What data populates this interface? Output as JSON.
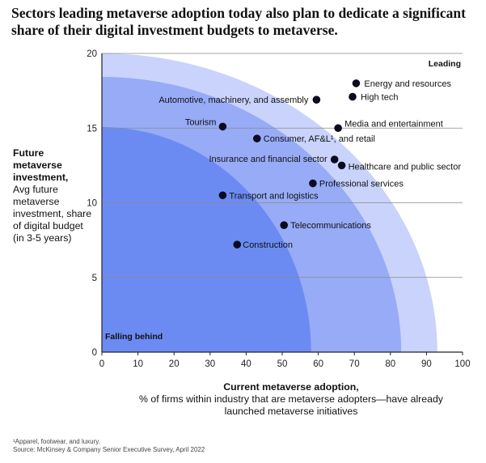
{
  "chart_data": {
    "type": "scatter",
    "title": "Sectors leading metaverse adoption today also plan to dedicate a significant share of their digital investment budgets to metaverse.",
    "xlabel": {
      "bold": "Current metaverse adoption,",
      "normal": "% of firms within industry that are metaverse adopters—have already launched metaverse initiatives"
    },
    "ylabel": {
      "bold": "Future metaverse investment,",
      "normal": "Avg future metaverse investment, share of digital budget (in 3-5 years)"
    },
    "xlim": [
      0,
      100
    ],
    "ylim": [
      0,
      20
    ],
    "x_ticks": [
      0,
      10,
      20,
      30,
      40,
      50,
      60,
      70,
      80,
      90,
      100
    ],
    "y_ticks": [
      0,
      5,
      10,
      15,
      20
    ],
    "grid": "horizontal",
    "zones": [
      {
        "label": "Leading",
        "x_intercept": 93,
        "color": "#c9d3fb"
      },
      {
        "label": "",
        "x_intercept": 83,
        "color": "#97abf7"
      },
      {
        "label": "Falling behind",
        "x_intercept": 58,
        "color": "#6c8bf2"
      }
    ],
    "points": [
      {
        "label": "Energy and resources",
        "x": 70.5,
        "y": 18.0
      },
      {
        "label": "High tech",
        "x": 69.5,
        "y": 17.1
      },
      {
        "label": "Automotive, machinery, and assembly",
        "x": 59.5,
        "y": 16.9
      },
      {
        "label": "Media and entertainment",
        "x": 65.5,
        "y": 15.0
      },
      {
        "label": "Tourism",
        "x": 33.5,
        "y": 15.1
      },
      {
        "label": "Consumer, AF&L¹, and retail",
        "x": 43.0,
        "y": 14.3
      },
      {
        "label": "Insurance and financial sector",
        "x": 64.5,
        "y": 12.9
      },
      {
        "label": "Healthcare and public sector",
        "x": 66.5,
        "y": 12.5
      },
      {
        "label": "Professional services",
        "x": 58.5,
        "y": 11.3
      },
      {
        "label": "Transport and logistics",
        "x": 33.5,
        "y": 10.5
      },
      {
        "label": "Telecommunications",
        "x": 50.5,
        "y": 8.5
      },
      {
        "label": "Construction",
        "x": 37.5,
        "y": 7.2
      }
    ],
    "colors": {
      "dot": "#0b0b1f",
      "grid": "#8a8a8a",
      "axis": "#222222"
    }
  },
  "footnote": {
    "line1": "¹Apparel, footwear, and luxury.",
    "line2": "Source: McKinsey & Company Senior Executive Survey, April 2022"
  }
}
